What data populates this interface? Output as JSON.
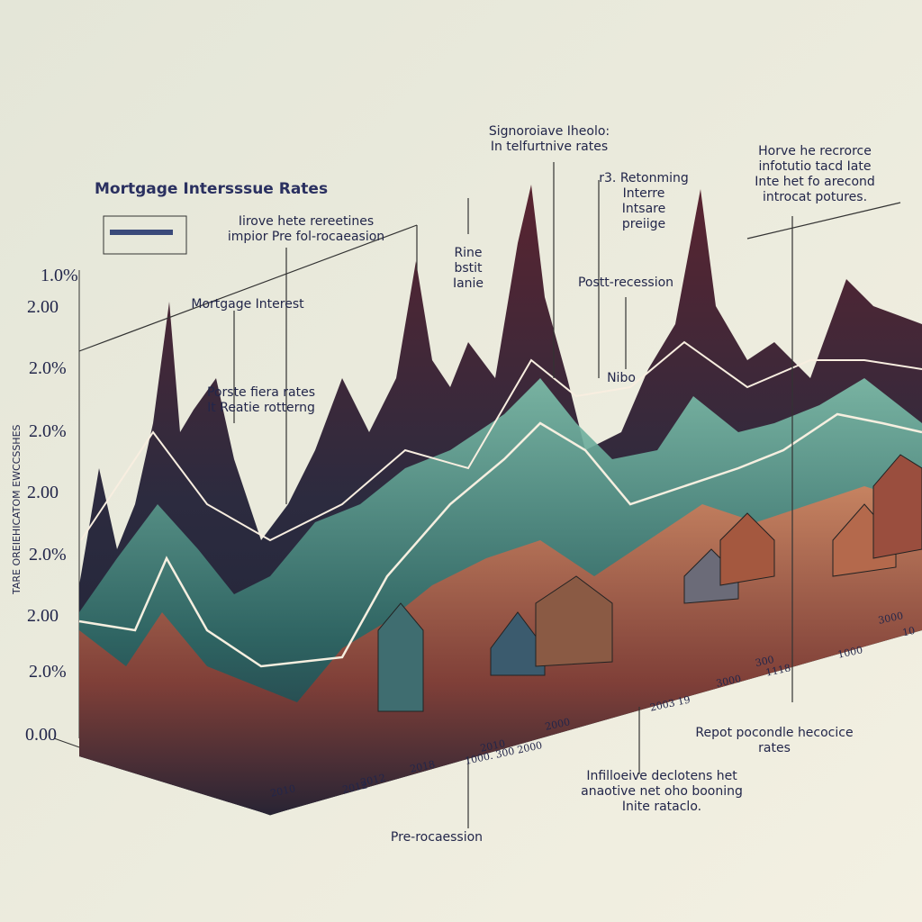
{
  "title": "Mortgage Intersssue Rates",
  "y_axis_title": "TARE OREIEHICATOM EWCCSSHES",
  "y_labels": [
    "1.0%",
    "2.00",
    "2.0%",
    "2.0%",
    "2.00",
    "2.0%",
    "2.00",
    "2.0%",
    "0.00"
  ],
  "annotations": [
    {
      "lines": [
        "Iirove hete rereetines",
        "impior Pre fol-rocaeasion"
      ]
    },
    {
      "lines": [
        "Mortgage Interest"
      ]
    },
    {
      "lines": [
        "Porste fiera rates",
        "It Reatie rotterng"
      ]
    },
    {
      "lines": [
        "Signoroiave Iheolo:",
        "In telfurtnive rates"
      ]
    },
    {
      "lines": [
        "Rine",
        "bstit",
        "Ianie"
      ]
    },
    {
      "lines": [
        "r3. Retonming",
        "Interre",
        "Intsare",
        "preiige"
      ]
    },
    {
      "lines": [
        "Postt-recession"
      ]
    },
    {
      "lines": [
        "Nibo"
      ]
    },
    {
      "lines": [
        "Horve he recrorce",
        "infotutio tacd Iate",
        "Inte het fo arecond",
        "introcat potures."
      ]
    },
    {
      "lines": [
        "Repot pocondle hecocice",
        "rates"
      ]
    },
    {
      "lines": [
        "Infilloeive declotens het",
        "anaotive net oho booning",
        "Inite rataclo."
      ]
    },
    {
      "lines": [
        "Pre-rocaession"
      ]
    }
  ],
  "x_labels": [
    "2010",
    "2012",
    "2012",
    "2018",
    "2010",
    "2000",
    "1000. 300 2000",
    "2003 19",
    "3000",
    "300",
    "1118",
    "1000",
    "3000",
    "10"
  ]
}
